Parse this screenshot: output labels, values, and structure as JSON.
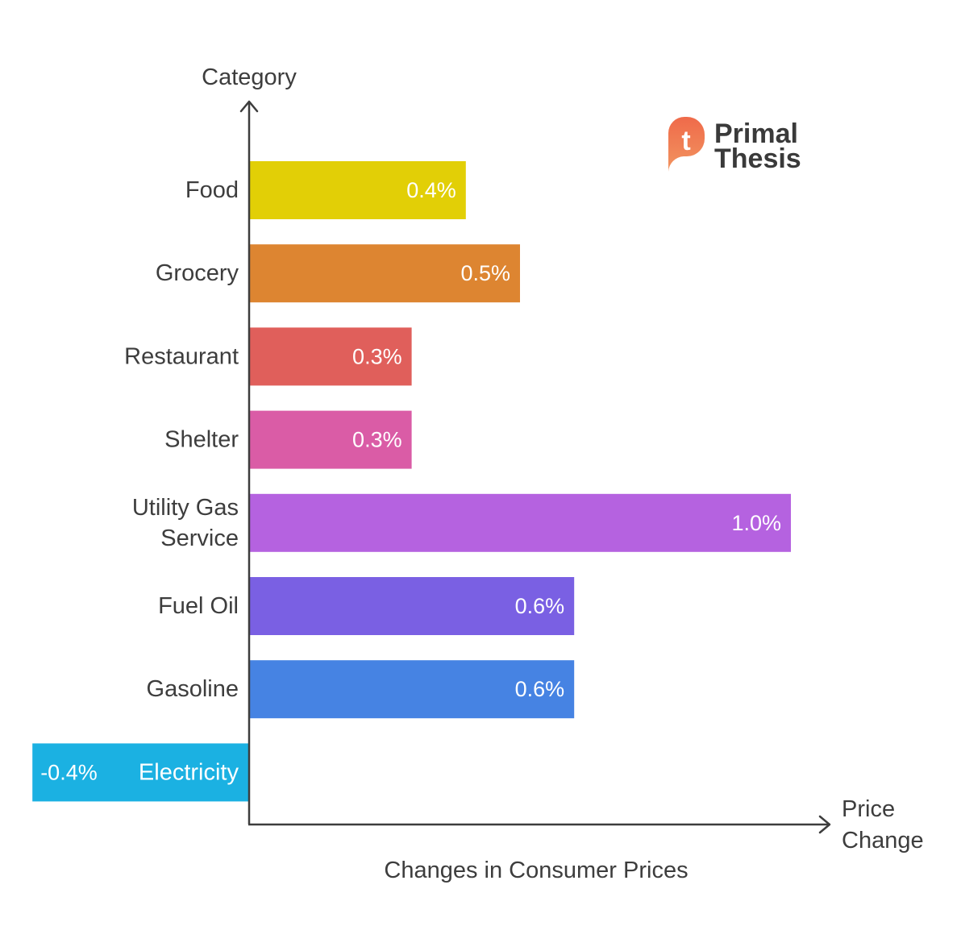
{
  "chart_data": {
    "type": "bar",
    "orientation": "horizontal",
    "title": "Changes in Consumer Prices",
    "ylabel": "Category",
    "xlabel_lines": [
      "Price",
      "Change"
    ],
    "value_suffix": "%",
    "categories": [
      {
        "label_lines": [
          "Food"
        ],
        "value": 0.4,
        "display": "0.4%",
        "color": "#e2cf06"
      },
      {
        "label_lines": [
          "Grocery"
        ],
        "value": 0.5,
        "display": "0.5%",
        "color": "#dd8531"
      },
      {
        "label_lines": [
          "Restaurant"
        ],
        "value": 0.3,
        "display": "0.3%",
        "color": "#e05f5b"
      },
      {
        "label_lines": [
          "Shelter"
        ],
        "value": 0.3,
        "display": "0.3%",
        "color": "#da5ca6"
      },
      {
        "label_lines": [
          "Utility Gas",
          "Service"
        ],
        "value": 1.0,
        "display": "1.0%",
        "color": "#b562e0"
      },
      {
        "label_lines": [
          "Fuel Oil"
        ],
        "value": 0.6,
        "display": "0.6%",
        "color": "#7a60e3"
      },
      {
        "label_lines": [
          "Gasoline"
        ],
        "value": 0.6,
        "display": "0.6%",
        "color": "#4683e3"
      },
      {
        "label_lines": [
          "Electricity"
        ],
        "value": -0.4,
        "display": "-0.4%",
        "color": "#1bb1e2"
      }
    ],
    "xlim": [
      -0.4,
      1.0
    ]
  },
  "logo": {
    "line1": "Primal",
    "line2": "Thesis",
    "mark_letter": "t",
    "mark_color_top": "#ef6a4a",
    "mark_color_bottom": "#f29560"
  },
  "colors": {
    "axis": "#3d3d3d",
    "text": "#3d3d3d",
    "value_text": "#ffffff"
  }
}
